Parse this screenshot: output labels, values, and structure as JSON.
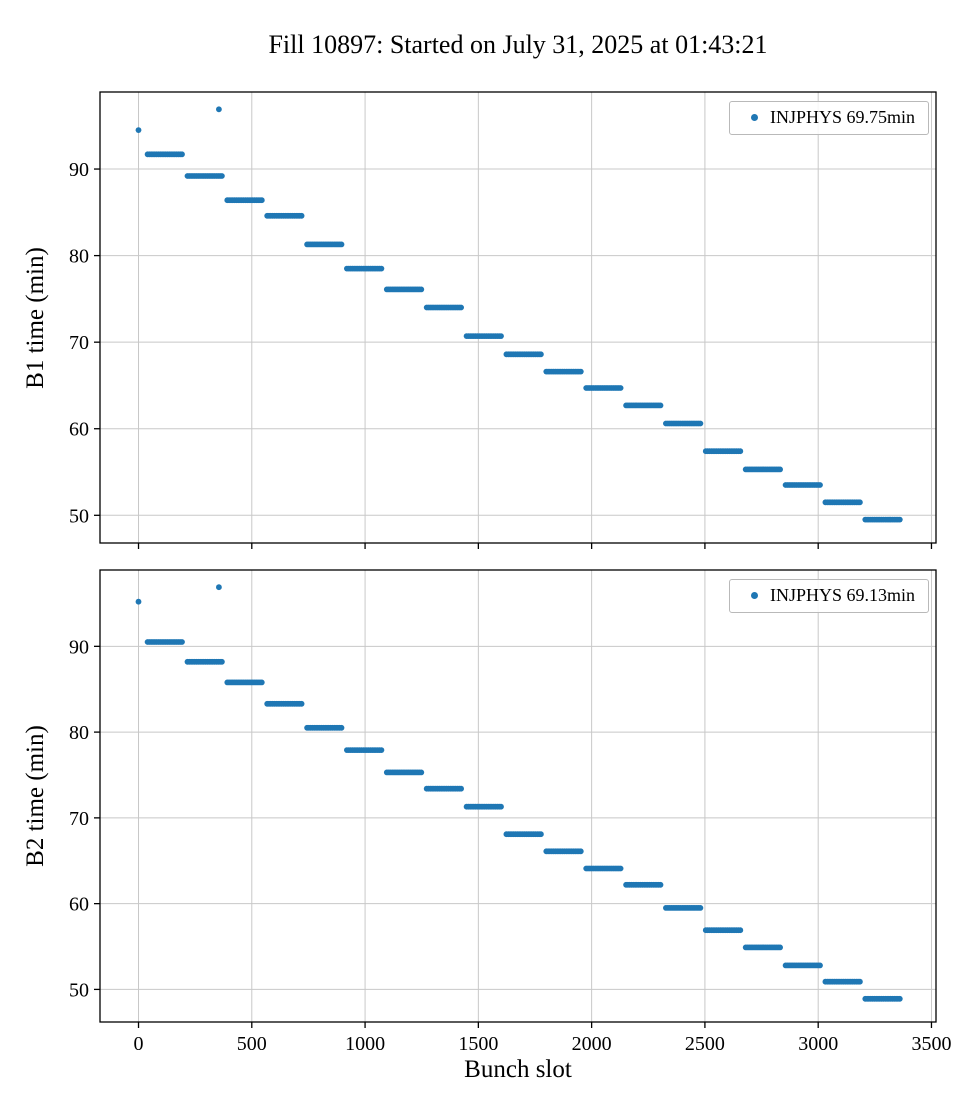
{
  "figure": {
    "title": "Fill 10897: Started on July 31, 2025 at 01:43:21",
    "xlabel": "Bunch slot",
    "background": "#ffffff",
    "marker_color": "#1f77b4",
    "grid_color": "#c8c8c8",
    "spine_color": "#000000"
  },
  "chart_data": [
    {
      "type": "scatter",
      "beam": "B1",
      "ylabel": "B1 time (min)",
      "legend_label": "INJPHYS 69.75min",
      "legend_position": "upper right",
      "grid": true,
      "marker_color": "#1f77b4",
      "xlim": [
        -170,
        3520
      ],
      "ylim": [
        46.8,
        98.9
      ],
      "xticks": [
        0,
        500,
        1000,
        1500,
        2000,
        2500,
        3000,
        3500
      ],
      "yticks": [
        50,
        60,
        70,
        80,
        90
      ],
      "show_xticklabels": false,
      "isolated_points": [
        [
          0,
          94.5
        ],
        [
          355,
          96.9
        ]
      ],
      "segment_format": [
        "x_start_slot",
        "x_end_slot",
        "y_minutes"
      ],
      "step_segments": [
        [
          40,
          196,
          91.7
        ],
        [
          216,
          372,
          89.2
        ],
        [
          392,
          548,
          86.4
        ],
        [
          568,
          724,
          84.6
        ],
        [
          744,
          900,
          81.3
        ],
        [
          920,
          1076,
          78.5
        ],
        [
          1096,
          1252,
          76.1
        ],
        [
          1272,
          1428,
          74.0
        ],
        [
          1448,
          1604,
          70.7
        ],
        [
          1624,
          1780,
          68.6
        ],
        [
          1800,
          1956,
          66.6
        ],
        [
          1976,
          2132,
          64.7
        ],
        [
          2152,
          2308,
          62.7
        ],
        [
          2328,
          2484,
          60.6
        ],
        [
          2504,
          2660,
          57.4
        ],
        [
          2680,
          2836,
          55.3
        ],
        [
          2856,
          3012,
          53.5
        ],
        [
          3032,
          3188,
          51.5
        ],
        [
          3208,
          3364,
          49.5
        ]
      ]
    },
    {
      "type": "scatter",
      "beam": "B2",
      "ylabel": "B2 time (min)",
      "legend_label": "INJPHYS 69.13min",
      "legend_position": "upper right",
      "grid": true,
      "marker_color": "#1f77b4",
      "xlim": [
        -170,
        3520
      ],
      "ylim": [
        46.2,
        98.9
      ],
      "xticks": [
        0,
        500,
        1000,
        1500,
        2000,
        2500,
        3000,
        3500
      ],
      "yticks": [
        50,
        60,
        70,
        80,
        90
      ],
      "show_xticklabels": true,
      "isolated_points": [
        [
          0,
          95.2
        ],
        [
          355,
          96.9
        ]
      ],
      "segment_format": [
        "x_start_slot",
        "x_end_slot",
        "y_minutes"
      ],
      "step_segments": [
        [
          40,
          196,
          90.5
        ],
        [
          216,
          372,
          88.2
        ],
        [
          392,
          548,
          85.8
        ],
        [
          568,
          724,
          83.3
        ],
        [
          744,
          900,
          80.5
        ],
        [
          920,
          1076,
          77.9
        ],
        [
          1096,
          1252,
          75.3
        ],
        [
          1272,
          1428,
          73.4
        ],
        [
          1448,
          1604,
          71.3
        ],
        [
          1624,
          1780,
          68.1
        ],
        [
          1800,
          1956,
          66.1
        ],
        [
          1976,
          2132,
          64.1
        ],
        [
          2152,
          2308,
          62.2
        ],
        [
          2328,
          2484,
          59.5
        ],
        [
          2504,
          2660,
          56.9
        ],
        [
          2680,
          2836,
          54.9
        ],
        [
          2856,
          3012,
          52.8
        ],
        [
          3032,
          3188,
          50.9
        ],
        [
          3208,
          3364,
          48.9
        ]
      ]
    }
  ]
}
